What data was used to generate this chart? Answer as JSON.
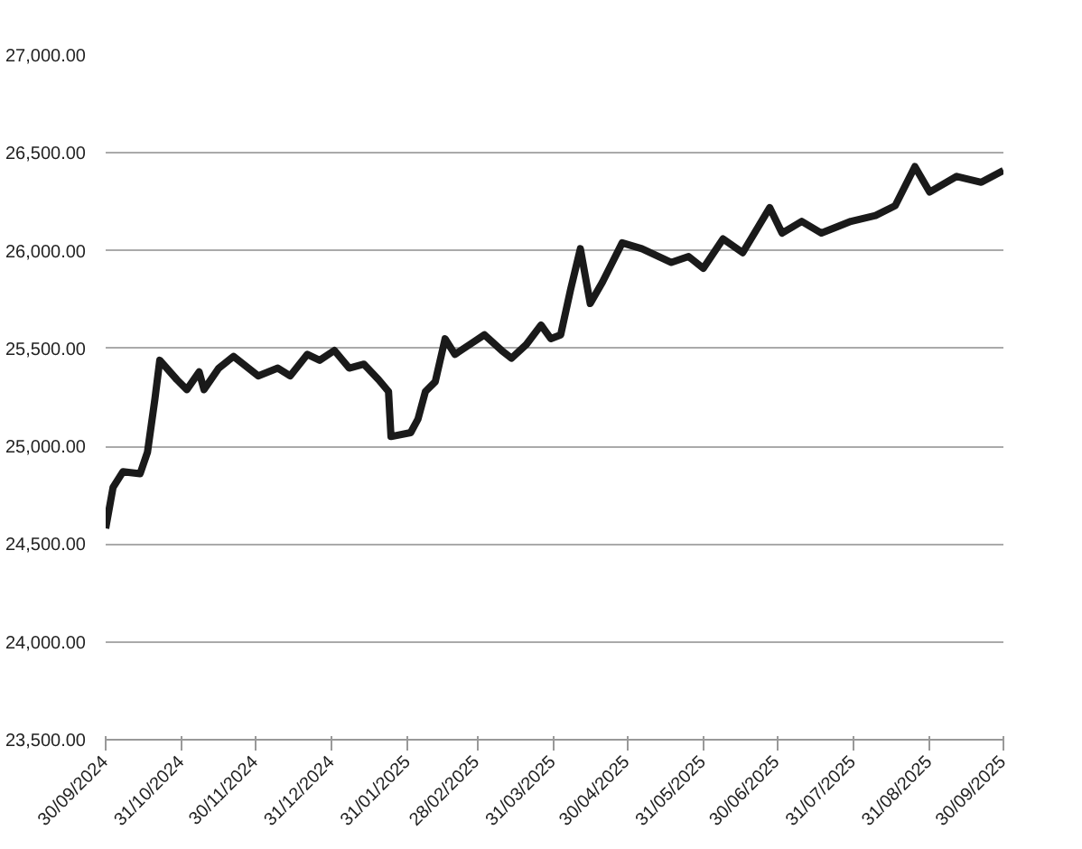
{
  "chart_data": {
    "type": "line",
    "grid": "y",
    "line_style": "solid",
    "x": [
      "2024-09-30",
      "2024-10-03",
      "2024-10-07",
      "2024-10-14",
      "2024-10-17",
      "2024-10-20",
      "2024-10-22",
      "2024-10-29",
      "2024-11-02",
      "2024-11-07",
      "2024-11-09",
      "2024-11-15",
      "2024-11-21",
      "2024-12-01",
      "2024-12-09",
      "2024-12-14",
      "2024-12-21",
      "2024-12-26",
      "2025-01-01",
      "2025-01-07",
      "2025-01-13",
      "2025-01-19",
      "2025-01-23",
      "2025-01-24",
      "2025-02-01",
      "2025-02-04",
      "2025-02-07",
      "2025-02-11",
      "2025-02-15",
      "2025-02-19",
      "2025-02-25",
      "2025-03-03",
      "2025-03-10",
      "2025-03-14",
      "2025-03-20",
      "2025-03-26",
      "2025-03-30",
      "2025-04-03",
      "2025-04-07",
      "2025-04-11",
      "2025-04-15",
      "2025-04-20",
      "2025-04-28",
      "2025-05-06",
      "2025-05-18",
      "2025-05-25",
      "2025-05-31",
      "2025-06-08",
      "2025-06-16",
      "2025-06-27",
      "2025-07-02",
      "2025-07-10",
      "2025-07-18",
      "2025-07-30",
      "2025-08-09",
      "2025-08-17",
      "2025-08-25",
      "2025-08-31",
      "2025-09-11",
      "2025-09-21",
      "2025-09-30"
    ],
    "series": [
      {
        "color": "#1a1a1a",
        "values": [
          24580,
          24790,
          24870,
          24860,
          24970,
          25240,
          25440,
          25340,
          25290,
          25380,
          25290,
          25400,
          25460,
          25360,
          25400,
          25360,
          25470,
          25440,
          25490,
          25400,
          25420,
          25340,
          25280,
          25050,
          25070,
          25140,
          25280,
          25330,
          25550,
          25470,
          25520,
          25570,
          25490,
          25450,
          25520,
          25620,
          25550,
          25570,
          25800,
          26010,
          25730,
          25840,
          26040,
          26010,
          25940,
          25970,
          25910,
          26060,
          25990,
          26220,
          26090,
          26150,
          26090,
          26150,
          26180,
          26230,
          26430,
          26300,
          26380,
          26350,
          26410
        ]
      }
    ],
    "ylim": [
      23500,
      27000
    ],
    "yticks": [
      {
        "value": 23500,
        "label": "23,500.00"
      },
      {
        "value": 24000,
        "label": "24,000.00"
      },
      {
        "value": 24500,
        "label": "24,500.00"
      },
      {
        "value": 25000,
        "label": "25,000.00"
      },
      {
        "value": 25500,
        "label": "25,500.00"
      },
      {
        "value": 26000,
        "label": "26,000.00"
      },
      {
        "value": 26500,
        "label": "26,500.00"
      },
      {
        "value": 27000,
        "label": "27,000.00"
      }
    ],
    "xlim": [
      "2024-09-30",
      "2025-09-30"
    ],
    "xticks": [
      {
        "value": "2024-09-30",
        "label": "30/09/2024"
      },
      {
        "value": "2024-10-31",
        "label": "31/10/2024"
      },
      {
        "value": "2024-11-30",
        "label": "30/11/2024"
      },
      {
        "value": "2024-12-31",
        "label": "31/12/2024"
      },
      {
        "value": "2025-01-31",
        "label": "31/01/2025"
      },
      {
        "value": "2025-02-28",
        "label": "28/02/2025"
      },
      {
        "value": "2025-03-31",
        "label": "31/03/2025"
      },
      {
        "value": "2025-04-30",
        "label": "30/04/2025"
      },
      {
        "value": "2025-05-31",
        "label": "31/05/2025"
      },
      {
        "value": "2025-06-30",
        "label": "30/06/2025"
      },
      {
        "value": "2025-07-31",
        "label": "31/07/2025"
      },
      {
        "value": "2025-08-31",
        "label": "31/08/2025"
      },
      {
        "value": "2025-09-30",
        "label": "30/09/2025"
      }
    ]
  }
}
